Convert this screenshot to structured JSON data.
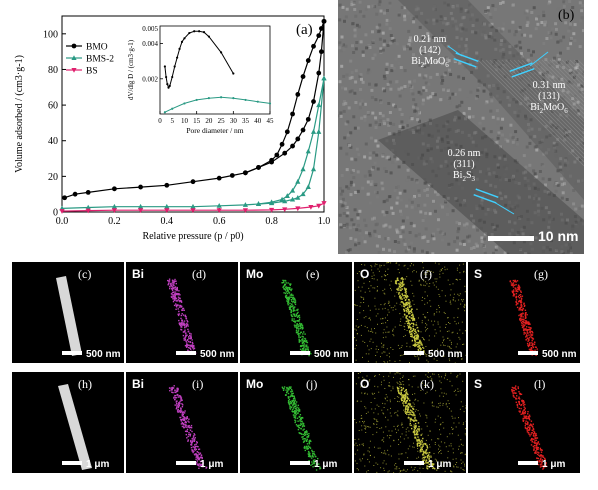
{
  "chart_data": [
    {
      "type": "line",
      "panel_label": "(a)",
      "xlabel": "Relative pressure (p / p0)",
      "ylabel": "Volume adsorbed / (cm3·g-1)",
      "xlim": [
        0,
        1.0
      ],
      "ylim": [
        0,
        110
      ],
      "x_ticks": [
        "0.0",
        "0.2",
        "0.4",
        "0.6",
        "0.8",
        "1.0"
      ],
      "y_ticks": [
        "0",
        "20",
        "40",
        "60",
        "80",
        "100"
      ],
      "legend_position": "top-left",
      "series": [
        {
          "name": "BMO",
          "color": "#000000",
          "marker": "circle",
          "x": [
            0.01,
            0.05,
            0.1,
            0.2,
            0.3,
            0.4,
            0.5,
            0.6,
            0.65,
            0.7,
            0.75,
            0.8,
            0.85,
            0.88,
            0.9,
            0.92,
            0.94,
            0.96,
            0.98,
            0.99,
            1.0
          ],
          "y": [
            8,
            10,
            11,
            13,
            14,
            15,
            17,
            19,
            20.5,
            22,
            25,
            28,
            33,
            37,
            41,
            46,
            52,
            62,
            78,
            90,
            107
          ]
        },
        {
          "name": "BMO-des",
          "color": "#000000",
          "marker": "circle",
          "x": [
            1.0,
            0.99,
            0.98,
            0.96,
            0.94,
            0.92,
            0.9,
            0.88,
            0.86,
            0.84,
            0.82,
            0.8,
            0.75,
            0.7
          ],
          "y": [
            107,
            103,
            99,
            93,
            85,
            76,
            66,
            55,
            45,
            38,
            32,
            29,
            25,
            22
          ]
        },
        {
          "name": "BMS-2",
          "color": "#2a9a84",
          "marker": "triangle",
          "x": [
            0.0,
            0.1,
            0.2,
            0.3,
            0.4,
            0.5,
            0.6,
            0.7,
            0.75,
            0.8,
            0.85,
            0.88,
            0.9,
            0.92,
            0.94,
            0.96,
            0.98,
            1.0
          ],
          "y": [
            2,
            2.5,
            3,
            3,
            3,
            3,
            3.5,
            4,
            4.5,
            5,
            6,
            7,
            8,
            10,
            14,
            24,
            45,
            75
          ]
        },
        {
          "name": "BMS-2-des",
          "color": "#2a9a84",
          "marker": "triangle",
          "x": [
            1.0,
            0.98,
            0.96,
            0.94,
            0.92,
            0.9,
            0.88,
            0.86,
            0.84,
            0.8,
            0.75
          ],
          "y": [
            75,
            60,
            45,
            34,
            24,
            17,
            12,
            9,
            7,
            5.5,
            4.5
          ]
        },
        {
          "name": "BS",
          "color": "#e0206e",
          "marker": "triangle-down",
          "x": [
            0.0,
            0.1,
            0.2,
            0.3,
            0.4,
            0.5,
            0.6,
            0.7,
            0.8,
            0.85,
            0.9,
            0.95,
            0.98,
            1.0
          ],
          "y": [
            0.5,
            0.8,
            1,
            1,
            1,
            1,
            1,
            1,
            1.2,
            1.5,
            2,
            2.8,
            3.5,
            5
          ]
        }
      ],
      "legend": [
        "BMO",
        "BMS-2",
        "BS"
      ]
    },
    {
      "type": "line",
      "role": "inset",
      "xlabel": "Pore diameter / nm",
      "ylabel": "dV/dlg D / (cm3·g-1)",
      "xlim": [
        0,
        45
      ],
      "ylim": [
        0,
        0.005
      ],
      "x_ticks": [
        "0",
        "5",
        "10",
        "15",
        "20",
        "25",
        "30",
        "35",
        "40",
        "45"
      ],
      "y_ticks": [
        "0.002",
        "0.004"
      ],
      "y_tick_top": "0.005",
      "series": [
        {
          "name": "BMO",
          "color": "#000000",
          "x": [
            2,
            2.5,
            3,
            3.5,
            4,
            5,
            6,
            7,
            8,
            9,
            10,
            12,
            14,
            16,
            18,
            20,
            25,
            30
          ],
          "y": [
            0.0027,
            0.0021,
            0.0017,
            0.0015,
            0.0016,
            0.0021,
            0.0027,
            0.0032,
            0.0037,
            0.0041,
            0.0043,
            0.0046,
            0.0047,
            0.0047,
            0.00465,
            0.0044,
            0.0035,
            0.0023
          ]
        },
        {
          "name": "BMS-2",
          "color": "#2a9a84",
          "x": [
            2,
            5,
            10,
            15,
            20,
            25,
            30,
            35,
            40,
            45
          ],
          "y": [
            0.0001,
            0.0003,
            0.0006,
            0.0008,
            0.0009,
            0.00095,
            0.0009,
            0.0008,
            0.0007,
            0.0006
          ]
        }
      ]
    }
  ],
  "tem": {
    "panel_label": "(b)",
    "annotations": [
      {
        "d": "0.21 nm",
        "hkl": "(142)",
        "phase": "Bi2MoO6"
      },
      {
        "d": "0.31 nm",
        "hkl": "(131)",
        "phase": "Bi2MoO6"
      },
      {
        "d": "0.26 nm",
        "hkl": "(311)",
        "phase": "Bi2S3"
      }
    ],
    "scale_bar": "10 nm"
  },
  "mapping": {
    "rows": [
      {
        "scale": "500 nm",
        "tiles": [
          {
            "label": "(c)",
            "element": "",
            "color": "#d8d8d8"
          },
          {
            "label": "(d)",
            "element": "Bi",
            "color": "#c040c0"
          },
          {
            "label": "(e)",
            "element": "Mo",
            "color": "#33bb33"
          },
          {
            "label": "(f)",
            "element": "O",
            "color": "#c8c840"
          },
          {
            "label": "(g)",
            "element": "S",
            "color": "#e02020"
          }
        ]
      },
      {
        "scale": "1 μm",
        "tiles": [
          {
            "label": "(h)",
            "element": "",
            "color": "#d8d8d8"
          },
          {
            "label": "(i)",
            "element": "Bi",
            "color": "#c040c0"
          },
          {
            "label": "(j)",
            "element": "Mo",
            "color": "#33bb33"
          },
          {
            "label": "(k)",
            "element": "O",
            "color": "#c8c840"
          },
          {
            "label": "(l)",
            "element": "S",
            "color": "#e02020"
          }
        ]
      }
    ]
  }
}
